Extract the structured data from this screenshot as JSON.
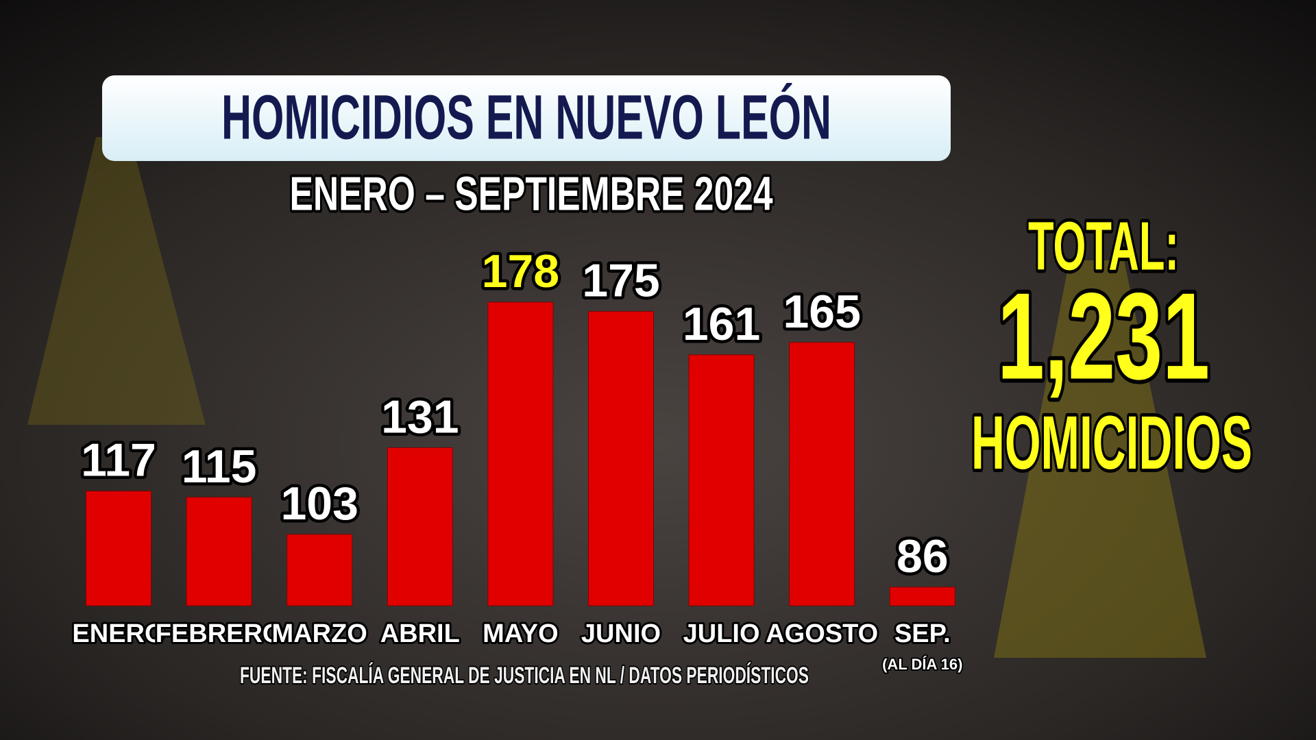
{
  "chart_data": {
    "type": "bar",
    "title": "HOMICIDIOS EN NUEVO LEÓN",
    "subtitle": "ENERO – SEPTIEMBRE 2024",
    "categories": [
      "ENERO",
      "FEBRERO",
      "MARZO",
      "ABRIL",
      "MAYO",
      "JUNIO",
      "JULIO",
      "AGOSTO",
      "SEP."
    ],
    "category_note": "(AL DÍA 16)",
    "values": [
      117,
      115,
      103,
      131,
      178,
      175,
      161,
      165,
      86
    ],
    "color": "#e00000",
    "label_colors": [
      "#ffffff",
      "#ffffff",
      "#ffffff",
      "#ffffff",
      "#ffff1a",
      "#ffffff",
      "#ffffff",
      "#ffffff",
      "#ffffff"
    ],
    "ylim": [
      80,
      180
    ],
    "total": {
      "label": "TOTAL:",
      "value": 1231,
      "value_label": "1,231",
      "unit": "HOMICIDIOS"
    },
    "source": "FUENTE: FISCALÍA GENERAL DE JUSTICIA EN NL / DATOS PERIODÍSTICOS"
  }
}
